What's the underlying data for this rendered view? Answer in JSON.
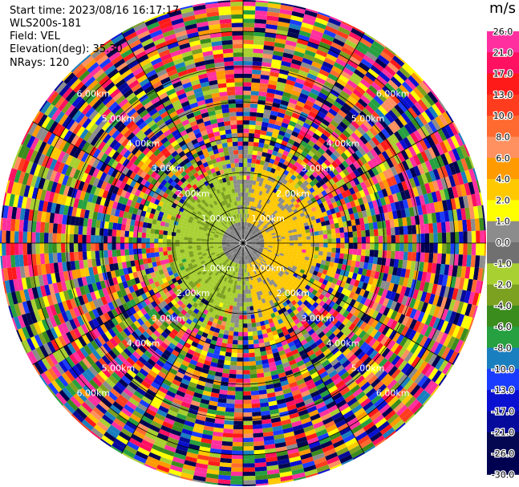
{
  "header": {
    "start_time": "Start time: 2023/08/16 16:17:17",
    "instrument": "WLS200s-181",
    "field": "Field: VEL",
    "elevation": "Elevation(deg): 35.30",
    "nrays": "NRays: 120"
  },
  "colorbar": {
    "unit": "m/s",
    "ticks": [
      "26.0",
      "21.0",
      "17.0",
      "13.0",
      "10.0",
      "8.0",
      "6.0",
      "4.0",
      "2.0",
      "1.0",
      "0.0",
      "-1.0",
      "-2.0",
      "-4.0",
      "-6.0",
      "-8.0",
      "-10.0",
      "-13.0",
      "-17.0",
      "-21.0",
      "-26.0",
      "-30.0"
    ],
    "colors": [
      "#ff2fa0",
      "#ff1060",
      "#ff1a1a",
      "#ff3c1e",
      "#ff6a30",
      "#ff9060",
      "#ff9a00",
      "#ffc800",
      "#ffff00",
      "#8c8c8c",
      "#707070",
      "#a8d030",
      "#7ca020",
      "#3a8c1c",
      "#26a040",
      "#1a7fbf",
      "#1a3cff",
      "#0a10d0",
      "#060a9a",
      "#030850",
      "#000050"
    ]
  },
  "chart_data": {
    "type": "heatmap",
    "projection": "polar PPI",
    "field": "VEL",
    "units": "m/s",
    "nrays": 120,
    "range_ring_labels": [
      "1.00km",
      "2.00km",
      "3.00km",
      "4.00km",
      "5.00km",
      "6.00km"
    ],
    "range_km": [
      0,
      6.9
    ],
    "levels": [
      -30,
      -26,
      -21,
      -17,
      -13,
      -10,
      -8,
      -6,
      -4,
      -2,
      -1,
      0,
      1,
      2,
      4,
      6,
      8,
      10,
      13,
      17,
      21,
      26
    ],
    "near_field_summary": "Inner ~2 km mostly grey (0 to 1 m/s) and green (-1 to -4 m/s) on west side, yellow (2 to 4 m/s) on east side; beyond ~2.5 km values are noisy across full color range"
  }
}
